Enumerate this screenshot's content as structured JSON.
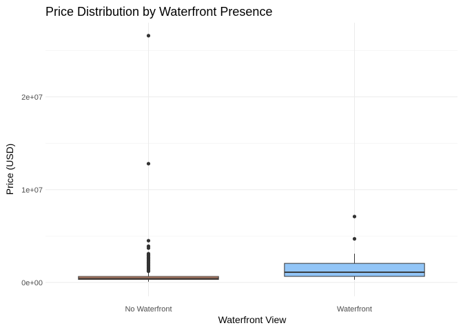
{
  "chart_data": {
    "type": "boxplot",
    "title": "Price Distribution by Waterfront Presence",
    "xlabel": "Waterfront View",
    "ylabel": "Price (USD)",
    "categories": [
      "No Waterfront",
      "Waterfront"
    ],
    "y_ticks": [
      0,
      10000000,
      20000000
    ],
    "y_tick_labels": [
      "0e+00",
      "1e+07",
      "2e+07"
    ],
    "ylim": [
      -1500000,
      28000000
    ],
    "grid": true,
    "boxes": [
      {
        "category": "No Waterfront",
        "fill": "#f4a582",
        "q1": 320000,
        "median": 450000,
        "q3": 640000,
        "whisker_low": 75000,
        "whisker_high": 1120000,
        "outliers": [
          26600000,
          12800000,
          4500000,
          3900000,
          3700000,
          3100000,
          3000000,
          2900000,
          2800000,
          2700000,
          2600000,
          2500000,
          2400000,
          2300000,
          2200000,
          2100000,
          2000000,
          1900000,
          1800000,
          1700000,
          1600000,
          1500000,
          1400000,
          1300000,
          1200000
        ]
      },
      {
        "category": "Waterfront",
        "fill": "#92c5f7",
        "q1": 650000,
        "median": 1100000,
        "q3": 2050000,
        "whisker_low": 285000,
        "whisker_high": 3100000,
        "outliers": [
          7100000,
          4700000
        ]
      }
    ]
  }
}
